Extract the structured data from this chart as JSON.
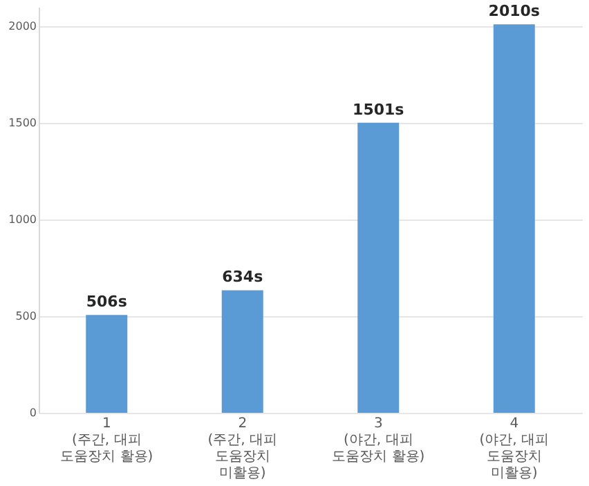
{
  "chart_data": {
    "type": "bar",
    "categories": [
      "1\n(주간, 대피 도움장치 활용)",
      "2\n(주간, 대피 도움장치 미활용)",
      "3\n(야간, 대피 도움장치 활용)",
      "4\n(야간, 대피 도움장치 미활용)"
    ],
    "values": [
      506,
      634,
      1501,
      2010
    ],
    "value_labels": [
      "506s",
      "634s",
      "1501s",
      "2010s"
    ],
    "color": "#5b9bd5",
    "ylim": [
      0,
      2100
    ],
    "yticks": [
      0,
      500,
      1000,
      1500,
      2000
    ],
    "grid": "y"
  }
}
